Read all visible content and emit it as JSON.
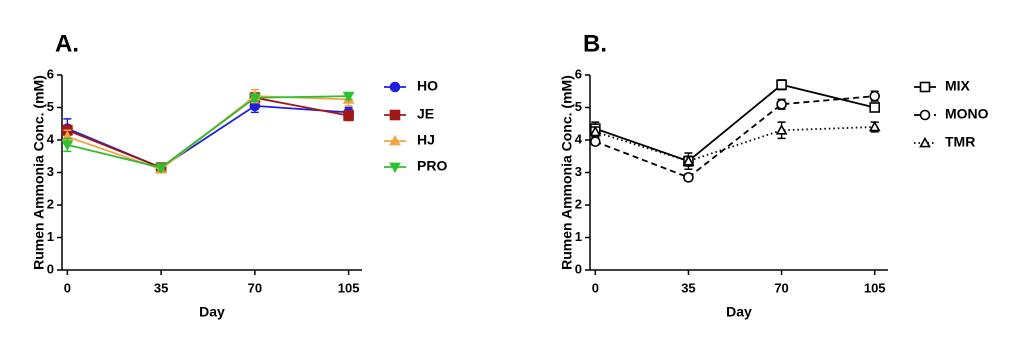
{
  "chart_data": [
    {
      "type": "line",
      "title": "A.",
      "xlabel": "Day",
      "ylabel": "Rumen Ammonia Conc. (mM)",
      "x": [
        0,
        35,
        70,
        105
      ],
      "xlim": [
        -2,
        110
      ],
      "xticks": [
        0,
        35,
        70,
        105
      ],
      "ylim": [
        0,
        6
      ],
      "yticks": [
        0,
        1,
        2,
        3,
        4,
        5,
        6
      ],
      "hollow_markers": false,
      "series": [
        {
          "name": "HO",
          "color": "#1f1fe0",
          "marker": "circle",
          "dash": "solid",
          "values": [
            4.35,
            3.15,
            5.05,
            4.85
          ],
          "errors": [
            0.3,
            0.1,
            0.2,
            0.15
          ]
        },
        {
          "name": "JE",
          "color": "#a01818",
          "marker": "square",
          "dash": "solid",
          "values": [
            4.3,
            3.15,
            5.3,
            4.75
          ],
          "errors": [
            0.15,
            0.1,
            0.15,
            0.15
          ]
        },
        {
          "name": "HJ",
          "color": "#f4a447",
          "marker": "triangle",
          "dash": "solid",
          "values": [
            4.1,
            3.1,
            5.35,
            5.25
          ],
          "errors": [
            0.2,
            0.1,
            0.2,
            0.2
          ]
        },
        {
          "name": "PRO",
          "color": "#2ec02e",
          "marker": "triangle-down",
          "dash": "solid",
          "values": [
            3.85,
            3.15,
            5.3,
            5.35
          ],
          "errors": [
            0.2,
            0.1,
            0.1,
            0.1
          ]
        }
      ]
    },
    {
      "type": "line",
      "title": "B.",
      "xlabel": "Day",
      "ylabel": "Rumen Ammonia Conc. (mM)",
      "x": [
        0,
        35,
        70,
        105
      ],
      "xlim": [
        -2,
        110
      ],
      "xticks": [
        0,
        35,
        70,
        105
      ],
      "ylim": [
        0,
        6
      ],
      "yticks": [
        0,
        1,
        2,
        3,
        4,
        5,
        6
      ],
      "hollow_markers": true,
      "series": [
        {
          "name": "MIX",
          "color": "#000000",
          "marker": "square",
          "dash": "solid",
          "values": [
            4.35,
            3.35,
            5.7,
            5.0
          ],
          "errors": [
            0.2,
            0.25,
            0.15,
            0.1
          ]
        },
        {
          "name": "MONO",
          "color": "#000000",
          "marker": "circle",
          "dash": "dashed",
          "values": [
            3.95,
            2.85,
            5.1,
            5.35
          ],
          "errors": [
            0.1,
            0.1,
            0.15,
            0.15
          ]
        },
        {
          "name": "TMR",
          "color": "#000000",
          "marker": "triangle",
          "dash": "dotted",
          "values": [
            4.25,
            3.35,
            4.3,
            4.4
          ],
          "errors": [
            0.15,
            0.15,
            0.25,
            0.15
          ]
        }
      ]
    }
  ]
}
